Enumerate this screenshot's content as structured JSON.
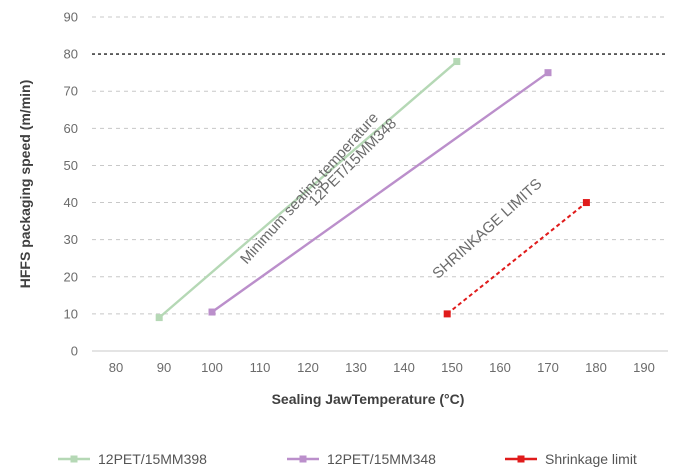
{
  "chart_data": {
    "type": "line",
    "xlabel": "Sealing JawTemperature (°C)",
    "ylabel": "HFFS packaging speed (m/min)",
    "xlim": [
      75,
      195
    ],
    "ylim": [
      0,
      90
    ],
    "x_ticks": [
      80,
      90,
      100,
      110,
      120,
      130,
      140,
      150,
      160,
      170,
      180,
      190
    ],
    "y_ticks": [
      0,
      10,
      20,
      30,
      40,
      50,
      60,
      70,
      80,
      90
    ],
    "grid": "horizontal dashed",
    "reference_line": {
      "y": 80,
      "style": "dashed dark"
    },
    "series": [
      {
        "name": "12PET/15MM398",
        "color": "#b5d8b5",
        "style": "solid",
        "points": [
          [
            89,
            9
          ],
          [
            151,
            78
          ]
        ]
      },
      {
        "name": "12PET/15MM348",
        "color": "#bb8fcb",
        "style": "solid",
        "points": [
          [
            100,
            10.5
          ],
          [
            170,
            75
          ]
        ]
      },
      {
        "name": "Shrinkage limit",
        "color": "#e01b1b",
        "style": "dashed",
        "points": [
          [
            149,
            10
          ],
          [
            178,
            40
          ]
        ]
      }
    ],
    "annotations": [
      {
        "text": "Minimum sealing temperature",
        "x": 121,
        "y": 43,
        "angle": -48
      },
      {
        "text": "12PET/15MM348",
        "x": 130,
        "y": 50,
        "angle": -45
      },
      {
        "text": "SHRINKAGE LIMITS",
        "x": 158,
        "y": 32,
        "angle": -42
      }
    ],
    "legend": {
      "position": "bottom"
    }
  }
}
